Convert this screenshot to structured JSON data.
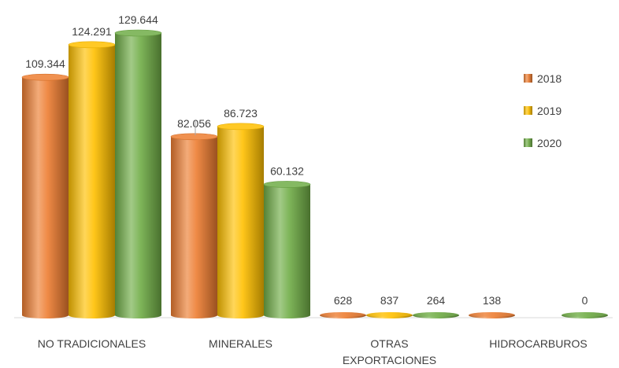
{
  "chart_data": {
    "type": "bar",
    "categories": [
      [
        "NO TRADICIONALES"
      ],
      [
        "MINERALES"
      ],
      [
        "OTRAS",
        "EXPORTACIONES"
      ],
      [
        "HIDROCARBUROS"
      ]
    ],
    "series": [
      {
        "name": "2018",
        "color": "#ED7D31",
        "values": [
          109344,
          82056,
          628,
          138
        ],
        "labels": [
          "109.344",
          "82.056",
          "628",
          "138"
        ]
      },
      {
        "name": "2019",
        "color": "#FFC000",
        "values": [
          124291,
          86723,
          837,
          0
        ],
        "labels": [
          "124.291",
          "86.723",
          "837",
          ""
        ]
      },
      {
        "name": "2020",
        "color": "#70AD47",
        "values": [
          129644,
          60132,
          264,
          0
        ],
        "labels": [
          "129.644",
          "60.132",
          "264",
          "0"
        ]
      }
    ],
    "ylim": [
      0,
      130000
    ],
    "legend_position": "right",
    "grid": false,
    "style": "3d-cylinder"
  }
}
